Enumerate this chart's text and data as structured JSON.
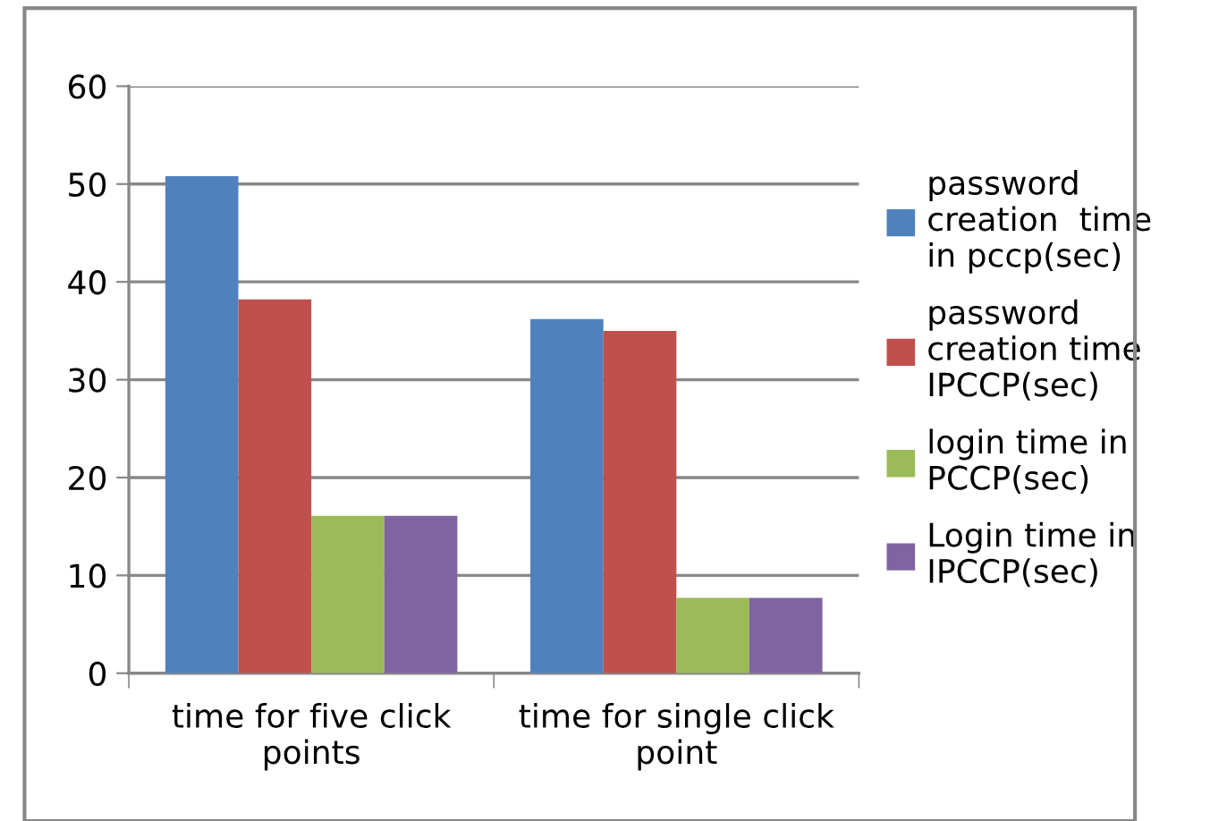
{
  "chart_data": {
    "type": "bar",
    "categories": [
      "time for five click\npoints",
      "time for single click\npoint"
    ],
    "series": [
      {
        "name": "password\ncreation  time\nin pccp(sec)",
        "color": "#4f81bd",
        "values": [
          50.8,
          36.2
        ]
      },
      {
        "name": "password\ncreation time\nIPCCP(sec)",
        "color": "#c0504d",
        "values": [
          38.2,
          35.0
        ]
      },
      {
        "name": "login time in\nPCCP(sec)",
        "color": "#9bbb59",
        "values": [
          16.1,
          7.7
        ]
      },
      {
        "name": "Login time in\nIPCCP(sec)",
        "color": "#8064a2",
        "values": [
          16.1,
          7.7
        ]
      }
    ],
    "ylim": [
      0,
      60
    ],
    "yticks": [
      0,
      10,
      20,
      30,
      40,
      50,
      60
    ],
    "grid": "y",
    "legend": "right"
  }
}
